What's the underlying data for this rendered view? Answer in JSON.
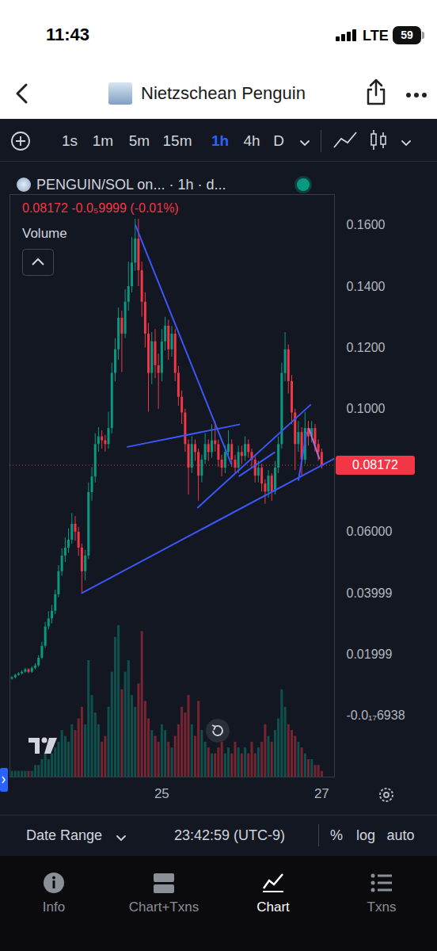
{
  "status_bar": {
    "time": "11:43",
    "network": "LTE",
    "battery": 59
  },
  "header": {
    "title": "Nietzschean Penguin"
  },
  "toolbar": {
    "intervals": [
      "1s",
      "1m",
      "5m",
      "15m",
      "1h",
      "4h",
      "D"
    ],
    "active": "1h"
  },
  "chart_data": {
    "type": "candlestick",
    "title": "PENGUIN/SOL on... · 1h · d...",
    "subtitle": "0.08172 -0.0₅9999 (-0.01%)",
    "x": [
      23.125,
      23.167,
      23.208,
      23.25,
      23.292,
      23.333,
      23.375,
      23.417,
      23.458,
      23.5,
      23.542,
      23.583,
      23.625,
      23.667,
      23.708,
      23.75,
      23.792,
      23.833,
      23.875,
      23.917,
      23.958,
      24.0,
      24.042,
      24.083,
      24.125,
      24.167,
      24.208,
      24.25,
      24.292,
      24.333,
      24.375,
      24.417,
      24.458,
      24.5,
      24.542,
      24.583,
      24.625,
      24.667,
      24.708,
      24.75,
      24.792,
      24.833,
      24.875,
      24.917,
      24.958,
      25.0,
      25.042,
      25.083,
      25.125,
      25.167,
      25.208,
      25.25,
      25.292,
      25.333,
      25.375,
      25.417,
      25.458,
      25.5,
      25.542,
      25.583,
      25.625,
      25.667,
      25.708,
      25.75,
      25.792,
      25.833,
      25.875,
      25.917,
      25.958,
      26.0,
      26.042,
      26.083,
      26.125,
      26.167,
      26.208,
      26.25,
      26.292,
      26.333,
      26.375,
      26.417,
      26.458,
      26.5,
      26.542,
      26.583,
      26.625,
      26.667,
      26.708,
      26.75,
      26.792,
      26.833,
      26.875,
      26.917,
      26.958,
      27.0
    ],
    "open": [
      0.012,
      0.0124,
      0.0132,
      0.0137,
      0.0142,
      0.015,
      0.0142,
      0.0155,
      0.0163,
      0.0188,
      0.0227,
      0.029,
      0.0316,
      0.0341,
      0.0395,
      0.047,
      0.0521,
      0.0547,
      0.0573,
      0.0625,
      0.0599,
      0.0547,
      0.047,
      0.0521,
      0.0728,
      0.0779,
      0.0885,
      0.091,
      0.0897,
      0.0885,
      0.0937,
      0.1117,
      0.1194,
      0.1297,
      0.1245,
      0.1349,
      0.14,
      0.1477,
      0.1555,
      0.1452,
      0.1349,
      0.1245,
      0.1117,
      0.122,
      0.1142,
      0.1117,
      0.122,
      0.1271,
      0.1194,
      0.1245,
      0.1117,
      0.1039,
      0.0988,
      0.0885,
      0.0808,
      0.0885,
      0.0859,
      0.0782,
      0.0834,
      0.0885,
      0.0859,
      0.0897,
      0.0885,
      0.0834,
      0.0808,
      0.0859,
      0.0885,
      0.0834,
      0.0808,
      0.0859,
      0.0846,
      0.0885,
      0.0859,
      0.0834,
      0.0782,
      0.0808,
      0.0756,
      0.073,
      0.0782,
      0.073,
      0.0808,
      0.0885,
      0.1117,
      0.1194,
      0.109,
      0.0988,
      0.0885,
      0.0924,
      0.0834,
      0.0937,
      0.091,
      0.0937,
      0.0885,
      0.0859
    ],
    "high": [
      0.0128,
      0.0136,
      0.0141,
      0.0147,
      0.0155,
      0.0154,
      0.016,
      0.017,
      0.0196,
      0.024,
      0.0305,
      0.034,
      0.036,
      0.041,
      0.049,
      0.0545,
      0.058,
      0.061,
      0.066,
      0.065,
      0.0615,
      0.056,
      0.054,
      0.076,
      0.081,
      0.092,
      0.094,
      0.093,
      0.0915,
      0.099,
      0.115,
      0.123,
      0.133,
      0.132,
      0.139,
      0.148,
      0.156,
      0.162,
      0.162,
      0.148,
      0.138,
      0.128,
      0.125,
      0.126,
      0.118,
      0.126,
      0.13,
      0.129,
      0.127,
      0.126,
      0.114,
      0.106,
      0.1,
      0.09,
      0.091,
      0.09,
      0.087,
      0.085,
      0.092,
      0.09,
      0.095,
      0.096,
      0.09,
      0.085,
      0.088,
      0.093,
      0.09,
      0.085,
      0.088,
      0.088,
      0.091,
      0.09,
      0.087,
      0.085,
      0.083,
      0.082,
      0.077,
      0.08,
      0.079,
      0.083,
      0.091,
      0.115,
      0.125,
      0.121,
      0.111,
      0.1,
      0.096,
      0.094,
      0.099,
      0.096,
      0.096,
      0.095,
      0.09,
      0.087
    ],
    "low": [
      0.0116,
      0.012,
      0.0129,
      0.0133,
      0.0139,
      0.0137,
      0.0139,
      0.015,
      0.0158,
      0.0183,
      0.022,
      0.028,
      0.03,
      0.033,
      0.0385,
      0.0455,
      0.05,
      0.053,
      0.056,
      0.057,
      0.052,
      0.04,
      0.044,
      0.051,
      0.07,
      0.076,
      0.086,
      0.087,
      0.086,
      0.087,
      0.092,
      0.109,
      0.116,
      0.112,
      0.123,
      0.132,
      0.138,
      0.145,
      0.14,
      0.13,
      0.12,
      0.099,
      0.108,
      0.11,
      0.1,
      0.109,
      0.119,
      0.116,
      0.117,
      0.109,
      0.101,
      0.095,
      0.086,
      0.072,
      0.079,
      0.083,
      0.07,
      0.076,
      0.082,
      0.083,
      0.084,
      0.086,
      0.081,
      0.078,
      0.079,
      0.084,
      0.081,
      0.079,
      0.079,
      0.082,
      0.083,
      0.084,
      0.081,
      0.076,
      0.076,
      0.073,
      0.069,
      0.071,
      0.07,
      0.072,
      0.079,
      0.087,
      0.109,
      0.105,
      0.095,
      0.08,
      0.086,
      0.078,
      0.082,
      0.088,
      0.089,
      0.086,
      0.083,
      0.0805
    ],
    "close": [
      0.0124,
      0.0132,
      0.0137,
      0.0142,
      0.015,
      0.0142,
      0.0155,
      0.0163,
      0.0188,
      0.0227,
      0.029,
      0.0316,
      0.0341,
      0.0395,
      0.047,
      0.0521,
      0.0547,
      0.0573,
      0.0625,
      0.0599,
      0.0547,
      0.047,
      0.0521,
      0.0728,
      0.0779,
      0.0885,
      0.091,
      0.0897,
      0.0885,
      0.0937,
      0.1117,
      0.1194,
      0.1297,
      0.1245,
      0.1349,
      0.14,
      0.1477,
      0.1555,
      0.1452,
      0.1349,
      0.1245,
      0.1117,
      0.122,
      0.1142,
      0.1117,
      0.122,
      0.1271,
      0.1194,
      0.1245,
      0.1117,
      0.1039,
      0.0988,
      0.0885,
      0.0808,
      0.0885,
      0.0859,
      0.0782,
      0.0834,
      0.0885,
      0.0859,
      0.0897,
      0.0885,
      0.0834,
      0.0808,
      0.0859,
      0.0885,
      0.0834,
      0.0808,
      0.0859,
      0.0846,
      0.0885,
      0.0859,
      0.0834,
      0.0782,
      0.0808,
      0.0756,
      0.073,
      0.0782,
      0.073,
      0.0808,
      0.0885,
      0.1117,
      0.1194,
      0.109,
      0.0988,
      0.0885,
      0.0924,
      0.0834,
      0.0937,
      0.091,
      0.0937,
      0.0885,
      0.0859,
      0.08172
    ],
    "series": [
      {
        "name": "Volume",
        "type": "bar",
        "axis": "y2",
        "values": [
          1,
          1,
          1,
          1,
          1,
          1,
          1,
          2,
          2,
          3,
          4,
          3,
          4,
          5,
          6,
          8,
          7,
          6,
          9,
          8,
          10,
          12,
          9,
          20,
          14,
          11,
          9,
          6,
          7,
          12,
          18,
          24,
          26,
          15,
          18,
          20,
          14,
          12,
          16,
          25,
          13,
          10,
          8,
          7,
          6,
          9,
          8,
          6,
          5,
          7,
          9,
          12,
          11,
          14,
          9,
          7,
          13,
          8,
          6,
          5,
          4,
          4,
          5,
          6,
          4,
          5,
          4,
          6,
          5,
          4,
          5,
          4,
          6,
          4,
          5,
          6,
          9,
          7,
          6,
          8,
          10,
          15,
          12,
          9,
          8,
          7,
          6,
          5,
          4,
          3,
          3,
          2,
          2,
          1
        ]
      }
    ],
    "xlim": [
      23.1,
      27.16
    ],
    "xticks": [
      25,
      27
    ],
    "ylim": [
      -0.02,
      0.17
    ],
    "yticks": [
      {
        "value": 0.16,
        "label": "0.1600"
      },
      {
        "value": 0.14,
        "label": "0.1400"
      },
      {
        "value": 0.12,
        "label": "0.1200"
      },
      {
        "value": 0.1,
        "label": "0.1000"
      },
      {
        "value": 0.06,
        "label": "0.06000"
      },
      0.03999,
      0.01999,
      {
        "value": -6.938e-18,
        "label": "-0.0₁₇6938"
      }
    ],
    "y2lim": [
      0,
      100
    ],
    "y2ticks": [],
    "grid": false,
    "last_price": {
      "value": 0.08172,
      "label": "0.08172"
    },
    "annotations": [
      {
        "type": "line",
        "color": "#3b57f5",
        "x": [
          24.67,
          25.87
        ],
        "y": [
          0.16,
          0.0821
        ]
      },
      {
        "type": "line",
        "color": "#3b57f5",
        "x": [
          24.57,
          25.97
        ],
        "y": [
          0.0877,
          0.095
        ]
      },
      {
        "type": "line",
        "color": "#3b57f5",
        "x": [
          24.0,
          27.16
        ],
        "y": [
          0.04,
          0.0839
        ]
      },
      {
        "type": "line",
        "color": "#3b57f5",
        "x": [
          25.45,
          26.86
        ],
        "y": [
          0.0679,
          0.1014
        ]
      },
      {
        "type": "line",
        "color": "#3b57f5",
        "x": [
          25.97,
          26.41
        ],
        "y": [
          0.0782,
          0.0859
        ]
      },
      {
        "type": "line",
        "color": "#3b57f5",
        "x": [
          26.71,
          26.81
        ],
        "y": [
          0.0769,
          0.0924
        ]
      },
      {
        "type": "line",
        "color": "#b76bd6",
        "x": [
          26.84,
          26.97
        ],
        "y": [
          0.0937,
          0.0839
        ]
      }
    ]
  },
  "date_range_bar": {
    "label": "Date Range",
    "time": "23:42:59 (UTC-9)",
    "options": [
      "%",
      "log",
      "auto"
    ]
  },
  "bottom_nav": {
    "tabs": [
      "Info",
      "Chart+Txns",
      "Chart",
      "Txns"
    ],
    "active": "Chart"
  }
}
